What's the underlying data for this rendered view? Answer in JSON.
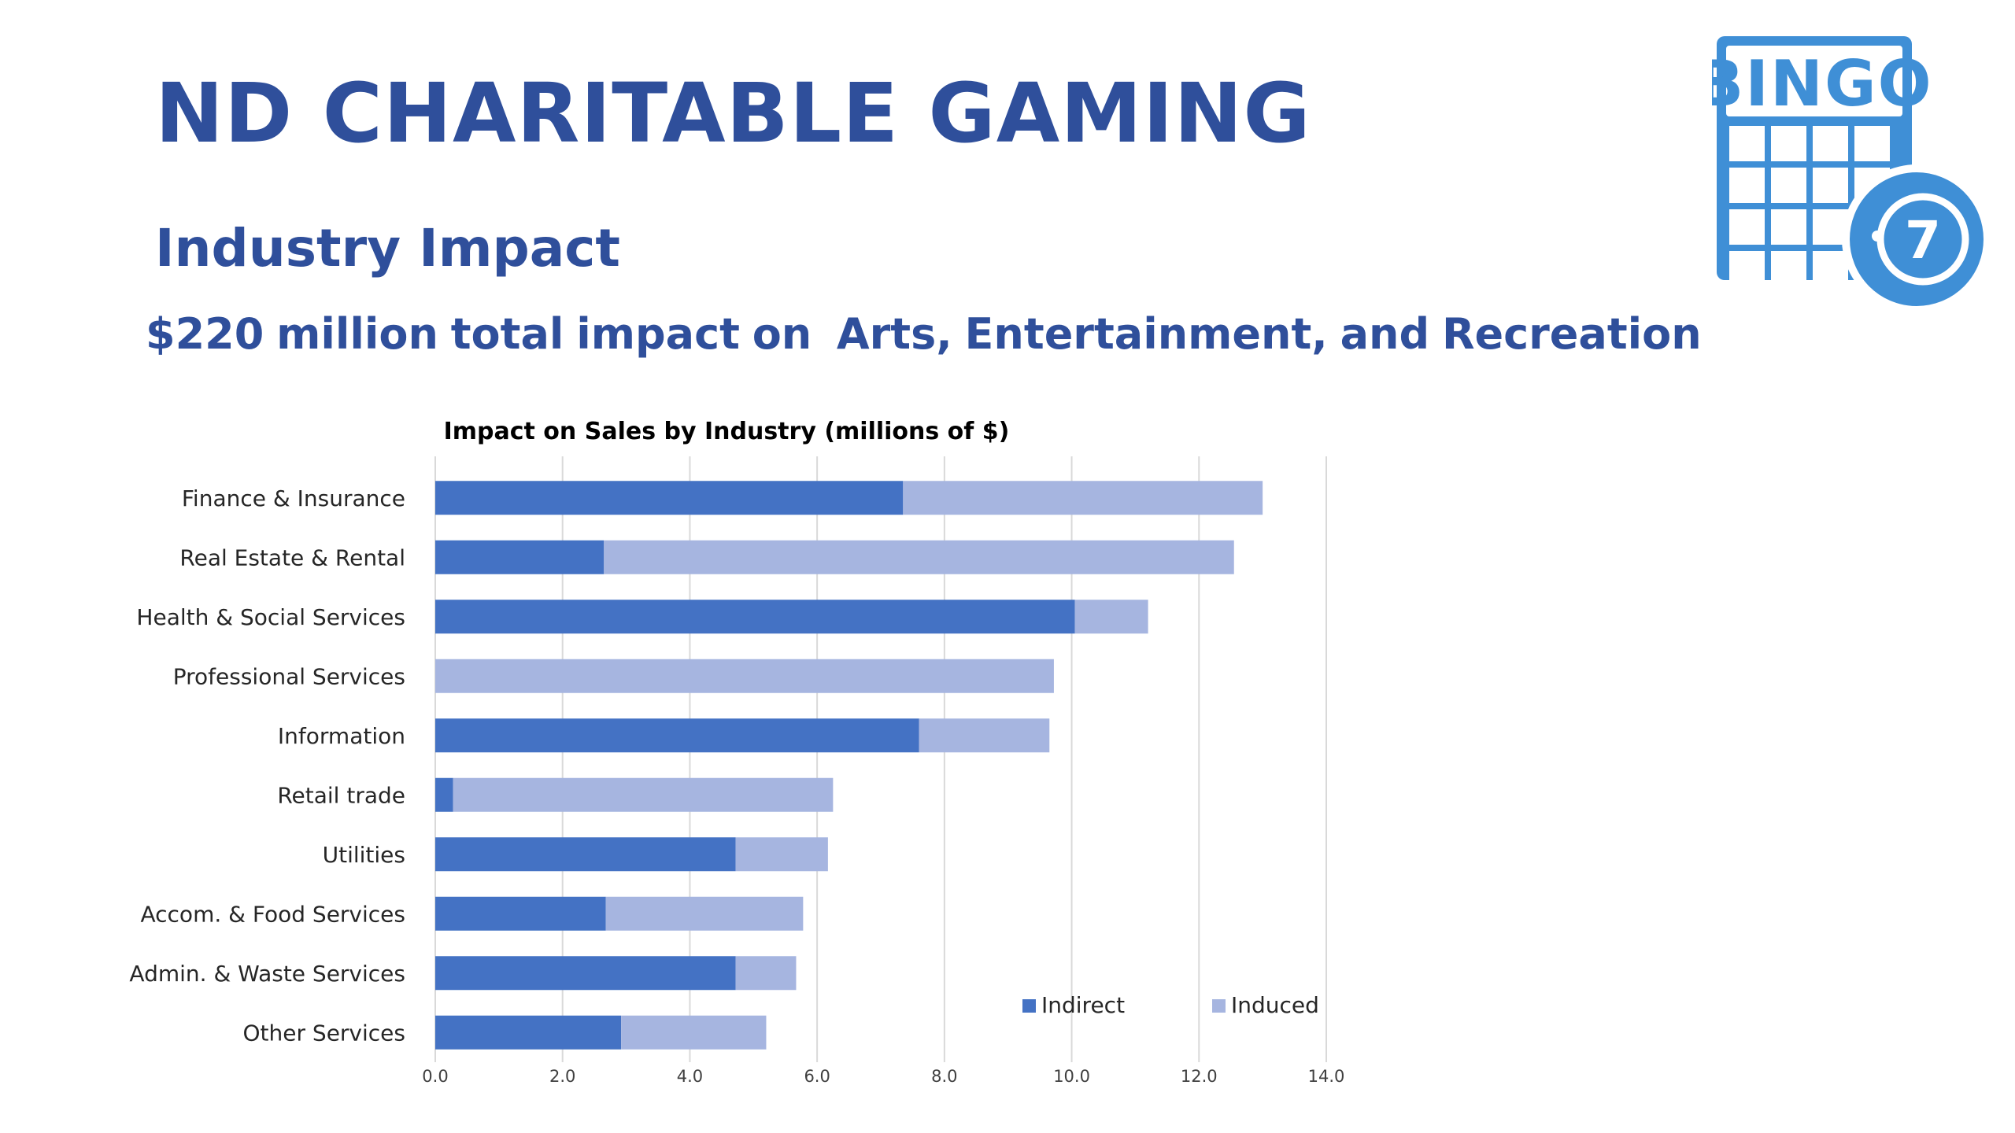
{
  "slide": {
    "title": "ND CHARITABLE GAMING",
    "subtitle": "Industry Impact",
    "tagline": "$220 million total impact on  Arts, Entertainment, and Recreation"
  },
  "logo": {
    "text": "BINGO",
    "ball_number": "7",
    "icon": "bingo-card-icon",
    "color": "#3F8FD6"
  },
  "colors": {
    "indirect": "#4472C4",
    "induced": "#A6B5E0",
    "title_text": "#2F4F9B",
    "grid": "#D9D9D9"
  },
  "chart_data": {
    "type": "bar",
    "orientation": "horizontal",
    "stacked": true,
    "title": "Impact on Sales by Industry (millions of $)",
    "categories": [
      "Finance & Insurance",
      "Real Estate & Rental",
      "Health & Social Services",
      "Professional Services",
      "Information",
      "Retail trade",
      "Utilities",
      "Accom. & Food Services",
      "Admin. & Waste Services",
      "Other Services"
    ],
    "series": [
      {
        "name": "Indirect",
        "values": [
          7.35,
          2.65,
          10.05,
          0,
          7.6,
          0.28,
          4.72,
          2.68,
          4.72,
          2.92
        ]
      },
      {
        "name": "Induced",
        "values": [
          5.65,
          9.9,
          1.15,
          9.72,
          2.05,
          5.97,
          1.45,
          3.1,
          0.95,
          2.28
        ]
      }
    ],
    "xlim": [
      0,
      14
    ],
    "xticks": [
      "0.0",
      "2.0",
      "4.0",
      "6.0",
      "8.0",
      "10.0",
      "12.0",
      "14.0"
    ],
    "grid": true,
    "legend": "bottom-right"
  }
}
